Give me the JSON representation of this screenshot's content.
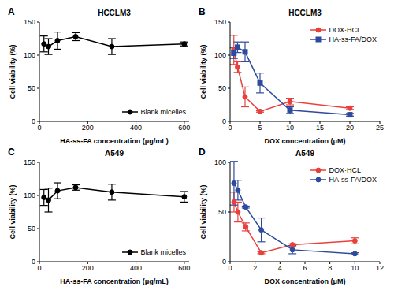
{
  "chart_data": [
    {
      "type": "line",
      "panel": "A",
      "title": "HCCLM3",
      "x_label": "HA-ss-FA concentration (μg/mL)",
      "y_label": "Cell viability (%)",
      "xlim": [
        0,
        620
      ],
      "xticks": [
        0,
        200,
        400,
        600
      ],
      "ylim": [
        0,
        150
      ],
      "yticks": [
        0,
        50,
        100,
        150
      ],
      "legend": "lower right",
      "series": [
        {
          "name": "Blank micelles",
          "color": "#000000",
          "marker": "circle",
          "x": [
            18.75,
            37.5,
            75,
            150,
            300,
            600
          ],
          "values": [
            117,
            113,
            122,
            128,
            113,
            117
          ],
          "errors": [
            12,
            12,
            13,
            6,
            12,
            3
          ]
        }
      ]
    },
    {
      "type": "line",
      "panel": "B",
      "title": "HCCLM3",
      "x_label": "DOX concentration (μM)",
      "y_label": "Cell viability (%)",
      "xlim": [
        0,
        25
      ],
      "xticks": [
        0,
        5,
        10,
        15,
        20,
        25
      ],
      "ylim": [
        0,
        150
      ],
      "yticks": [
        0,
        50,
        100,
        150
      ],
      "legend": "upper right",
      "series": [
        {
          "name": "DOX·HCL",
          "color": "#e8413c",
          "marker": "circle",
          "x": [
            0.625,
            1.25,
            2.5,
            5,
            10,
            20
          ],
          "values": [
            108,
            82,
            37,
            15,
            30,
            20
          ],
          "errors": [
            22,
            8,
            15,
            1,
            5,
            2
          ]
        },
        {
          "name": "HA-ss-FA/DOX",
          "color": "#2e4a9e",
          "marker": "square",
          "x": [
            0.625,
            1.25,
            2.5,
            5,
            10,
            20
          ],
          "values": [
            103,
            112,
            105,
            58,
            17,
            10
          ],
          "errors": [
            8,
            8,
            15,
            15,
            5,
            2
          ]
        }
      ]
    },
    {
      "type": "line",
      "panel": "C",
      "title": "A549",
      "x_label": "HA-ss-FA concentration (μg/mL)",
      "y_label": "Cell viability (%)",
      "xlim": [
        0,
        620
      ],
      "xticks": [
        0,
        200,
        400,
        600
      ],
      "ylim": [
        0,
        150
      ],
      "yticks": [
        0,
        50,
        100,
        150
      ],
      "legend": "lower right",
      "series": [
        {
          "name": "Blank micelles",
          "color": "#000000",
          "marker": "circle",
          "x": [
            18.75,
            37.5,
            75,
            150,
            300,
            600
          ],
          "values": [
            97,
            93,
            107,
            112,
            105,
            98
          ],
          "errors": [
            12,
            18,
            12,
            4,
            12,
            8
          ]
        }
      ]
    },
    {
      "type": "line",
      "panel": "D",
      "title": "A549",
      "x_label": "DOX concentration (μM)",
      "y_label": "Cell viability (%)",
      "xlim": [
        0,
        12
      ],
      "xticks": [
        0,
        2,
        4,
        6,
        8,
        10,
        12
      ],
      "ylim": [
        0,
        100
      ],
      "yticks": [
        0,
        50,
        100
      ],
      "legend": "upper right",
      "series": [
        {
          "name": "DOX·HCL",
          "color": "#e8413c",
          "marker": "circle",
          "x": [
            0.3125,
            0.625,
            1.25,
            2.5,
            5,
            10
          ],
          "values": [
            60,
            50,
            35,
            9,
            17,
            21
          ],
          "errors": [
            10,
            10,
            4,
            1,
            1,
            3
          ]
        },
        {
          "name": "HA-ss-FA/DOX",
          "color": "#2e4a9e",
          "marker": "circle",
          "x": [
            0.3125,
            0.625,
            1.25,
            2.5,
            5,
            10
          ],
          "values": [
            79,
            72,
            55,
            32,
            12,
            8
          ],
          "errors": [
            22,
            10,
            1,
            12,
            4,
            1
          ]
        }
      ]
    }
  ]
}
